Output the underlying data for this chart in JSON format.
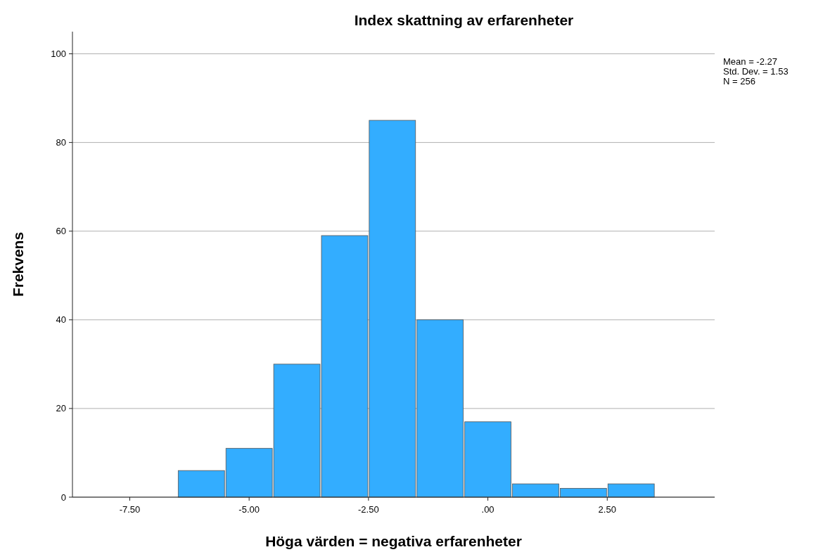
{
  "chart_data": {
    "type": "histogram",
    "title": "Index skattning av erfarenheter",
    "xlabel": "Höga värden = negativa erfarenheter",
    "ylabel": "Frekvens",
    "bins": [
      -6.5,
      -5.5,
      -4.5,
      -3.5,
      -2.5,
      -1.5,
      -0.5,
      0.5,
      1.5,
      2.5,
      3.5
    ],
    "values": [
      6,
      11,
      30,
      59,
      85,
      40,
      17,
      3,
      2,
      3
    ],
    "color": "#33adff",
    "xlim": [
      -8.7,
      4.75
    ],
    "ylim": [
      0,
      105
    ],
    "xticks": [
      {
        "value": -7.5,
        "label": "-7.50"
      },
      {
        "value": -5,
        "label": "-5.00"
      },
      {
        "value": -2.5,
        "label": "-2.50"
      },
      {
        "value": 0,
        "label": ".00"
      },
      {
        "value": 2.5,
        "label": "2.50"
      }
    ],
    "yticks": [
      0,
      20,
      40,
      60,
      80,
      100
    ],
    "grid": "y",
    "annotations": [
      "Mean = -2.27",
      "Std. Dev. = 1.53",
      "N = 256"
    ]
  }
}
